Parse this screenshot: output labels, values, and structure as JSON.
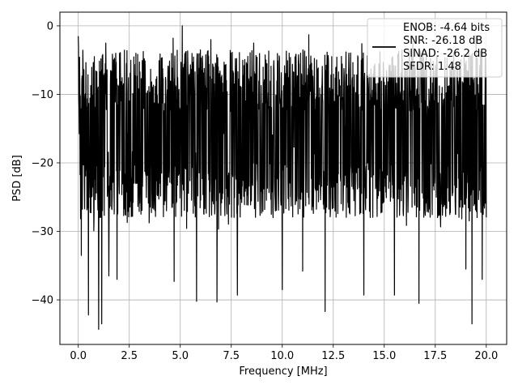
{
  "chart_data": {
    "type": "line",
    "xlabel": "Frequency [MHz]",
    "ylabel": "PSD [dB]",
    "xlim": [
      -0.9,
      21.0
    ],
    "ylim": [
      -46.5,
      2.0
    ],
    "xticks": [
      0.0,
      2.5,
      5.0,
      7.5,
      10.0,
      12.5,
      15.0,
      17.5,
      20.0
    ],
    "xtick_labels": [
      "0.0",
      "2.5",
      "5.0",
      "7.5",
      "10.0",
      "12.5",
      "15.0",
      "17.5",
      "20.0"
    ],
    "yticks": [
      0,
      -10,
      -20,
      -30,
      -40
    ],
    "ytick_labels": [
      "0",
      "−10",
      "−20",
      "−30",
      "−40"
    ],
    "grid": true,
    "legend_placement": "top-right",
    "line_color": "#000000",
    "series": [
      {
        "name": "ENOB: -4.64 bits\nSNR: -26.18 dB\nSINAD: -26.2 dB\nSFDR: 1.48",
        "x_range": [
          0.0,
          20.0
        ],
        "noise_band": [
          -30.0,
          -5.0
        ],
        "peak_points": [
          {
            "x": 0.0,
            "y": -1.5
          },
          {
            "x": 1.35,
            "y": -2.5
          },
          {
            "x": 4.65,
            "y": -1.8
          },
          {
            "x": 5.1,
            "y": 0.0
          },
          {
            "x": 6.5,
            "y": -2.0
          },
          {
            "x": 8.6,
            "y": -2.5
          },
          {
            "x": 11.3,
            "y": -1.3
          },
          {
            "x": 13.9,
            "y": -2.6
          },
          {
            "x": 16.4,
            "y": -2.3
          },
          {
            "x": 19.5,
            "y": -1.5
          }
        ],
        "min_points": [
          {
            "x": 0.15,
            "y": -33.5
          },
          {
            "x": 0.5,
            "y": -42.2
          },
          {
            "x": 1.0,
            "y": -44.3
          },
          {
            "x": 1.15,
            "y": -43.5
          },
          {
            "x": 1.5,
            "y": -36.5
          },
          {
            "x": 1.9,
            "y": -37.0
          },
          {
            "x": 4.7,
            "y": -37.3
          },
          {
            "x": 5.8,
            "y": -40.2
          },
          {
            "x": 6.8,
            "y": -40.3
          },
          {
            "x": 7.8,
            "y": -39.3
          },
          {
            "x": 10.0,
            "y": -38.5
          },
          {
            "x": 11.0,
            "y": -35.8
          },
          {
            "x": 12.1,
            "y": -41.7
          },
          {
            "x": 14.0,
            "y": -39.3
          },
          {
            "x": 15.5,
            "y": -39.3
          },
          {
            "x": 16.7,
            "y": -40.5
          },
          {
            "x": 19.0,
            "y": -35.5
          },
          {
            "x": 19.3,
            "y": -43.5
          },
          {
            "x": 19.8,
            "y": -37.0
          }
        ]
      }
    ]
  }
}
